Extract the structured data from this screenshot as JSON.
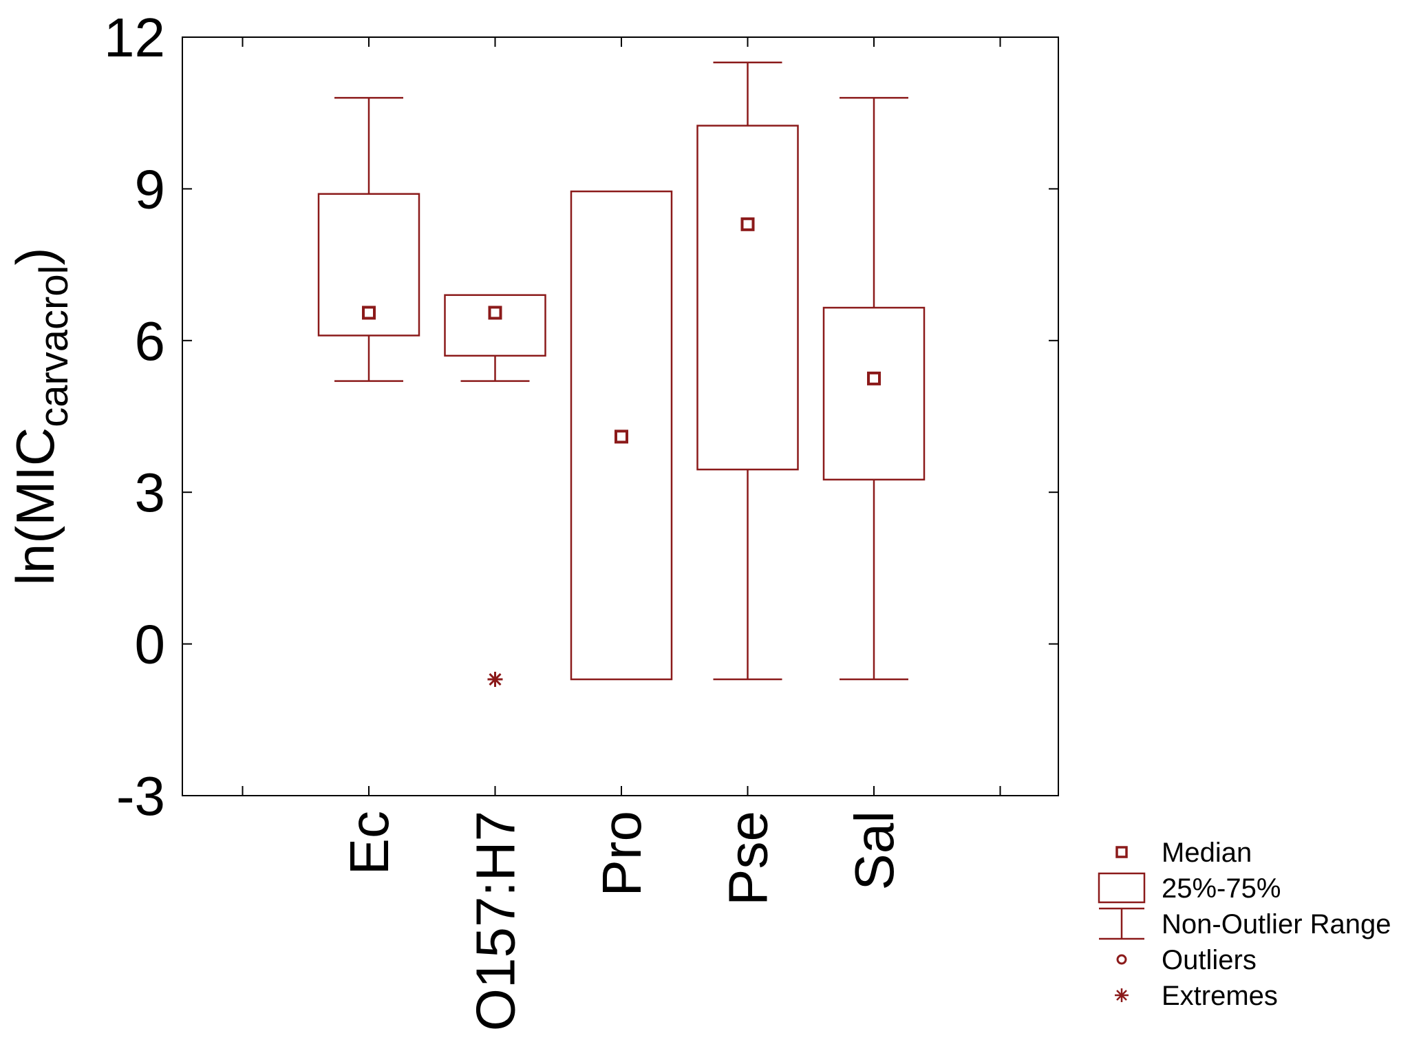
{
  "chart_data": {
    "type": "box",
    "title": "",
    "xlabel": "",
    "ylabel": {
      "main": "ln(MIC",
      "subscript": "carvacrol",
      "close": ")"
    },
    "ylim": [
      -3,
      12
    ],
    "yticks": [
      {
        "value": -3,
        "label": "-3"
      },
      {
        "value": 0,
        "label": "0"
      },
      {
        "value": 3,
        "label": "3"
      },
      {
        "value": 6,
        "label": "6"
      },
      {
        "value": 9,
        "label": "9"
      },
      {
        "value": 12,
        "label": "12"
      }
    ],
    "grid": false,
    "legend_position": "bottom-right",
    "color": "#8b1a1a",
    "categories": [
      "Ec",
      "O157:H7",
      "Pro",
      "Pse",
      "Sal"
    ],
    "boxes": [
      {
        "category": "Ec",
        "whisker_low": 5.2,
        "q1": 6.1,
        "median": 6.55,
        "q3": 8.9,
        "whisker_high": 10.8,
        "extremes": []
      },
      {
        "category": "O157:H7",
        "whisker_low": 5.2,
        "q1": 5.7,
        "median": 6.55,
        "q3": 6.9,
        "whisker_high": 6.9,
        "extremes": [
          -0.7
        ]
      },
      {
        "category": "Pro",
        "whisker_low": -0.7,
        "q1": -0.7,
        "median": 4.1,
        "q3": 8.95,
        "whisker_high": 8.95,
        "extremes": []
      },
      {
        "category": "Pse",
        "whisker_low": -0.7,
        "q1": 3.45,
        "median": 8.3,
        "q3": 10.25,
        "whisker_high": 11.5,
        "extremes": []
      },
      {
        "category": "Sal",
        "whisker_low": -0.7,
        "q1": 3.25,
        "median": 5.25,
        "q3": 6.65,
        "whisker_high": 10.8,
        "extremes": []
      }
    ],
    "legend": [
      {
        "symbol": "median",
        "label": "Median"
      },
      {
        "symbol": "box",
        "label": "25%-75%"
      },
      {
        "symbol": "whisker",
        "label": "Non-Outlier Range"
      },
      {
        "symbol": "outlier",
        "label": "Outliers"
      },
      {
        "symbol": "extreme",
        "label": "Extremes"
      }
    ]
  }
}
